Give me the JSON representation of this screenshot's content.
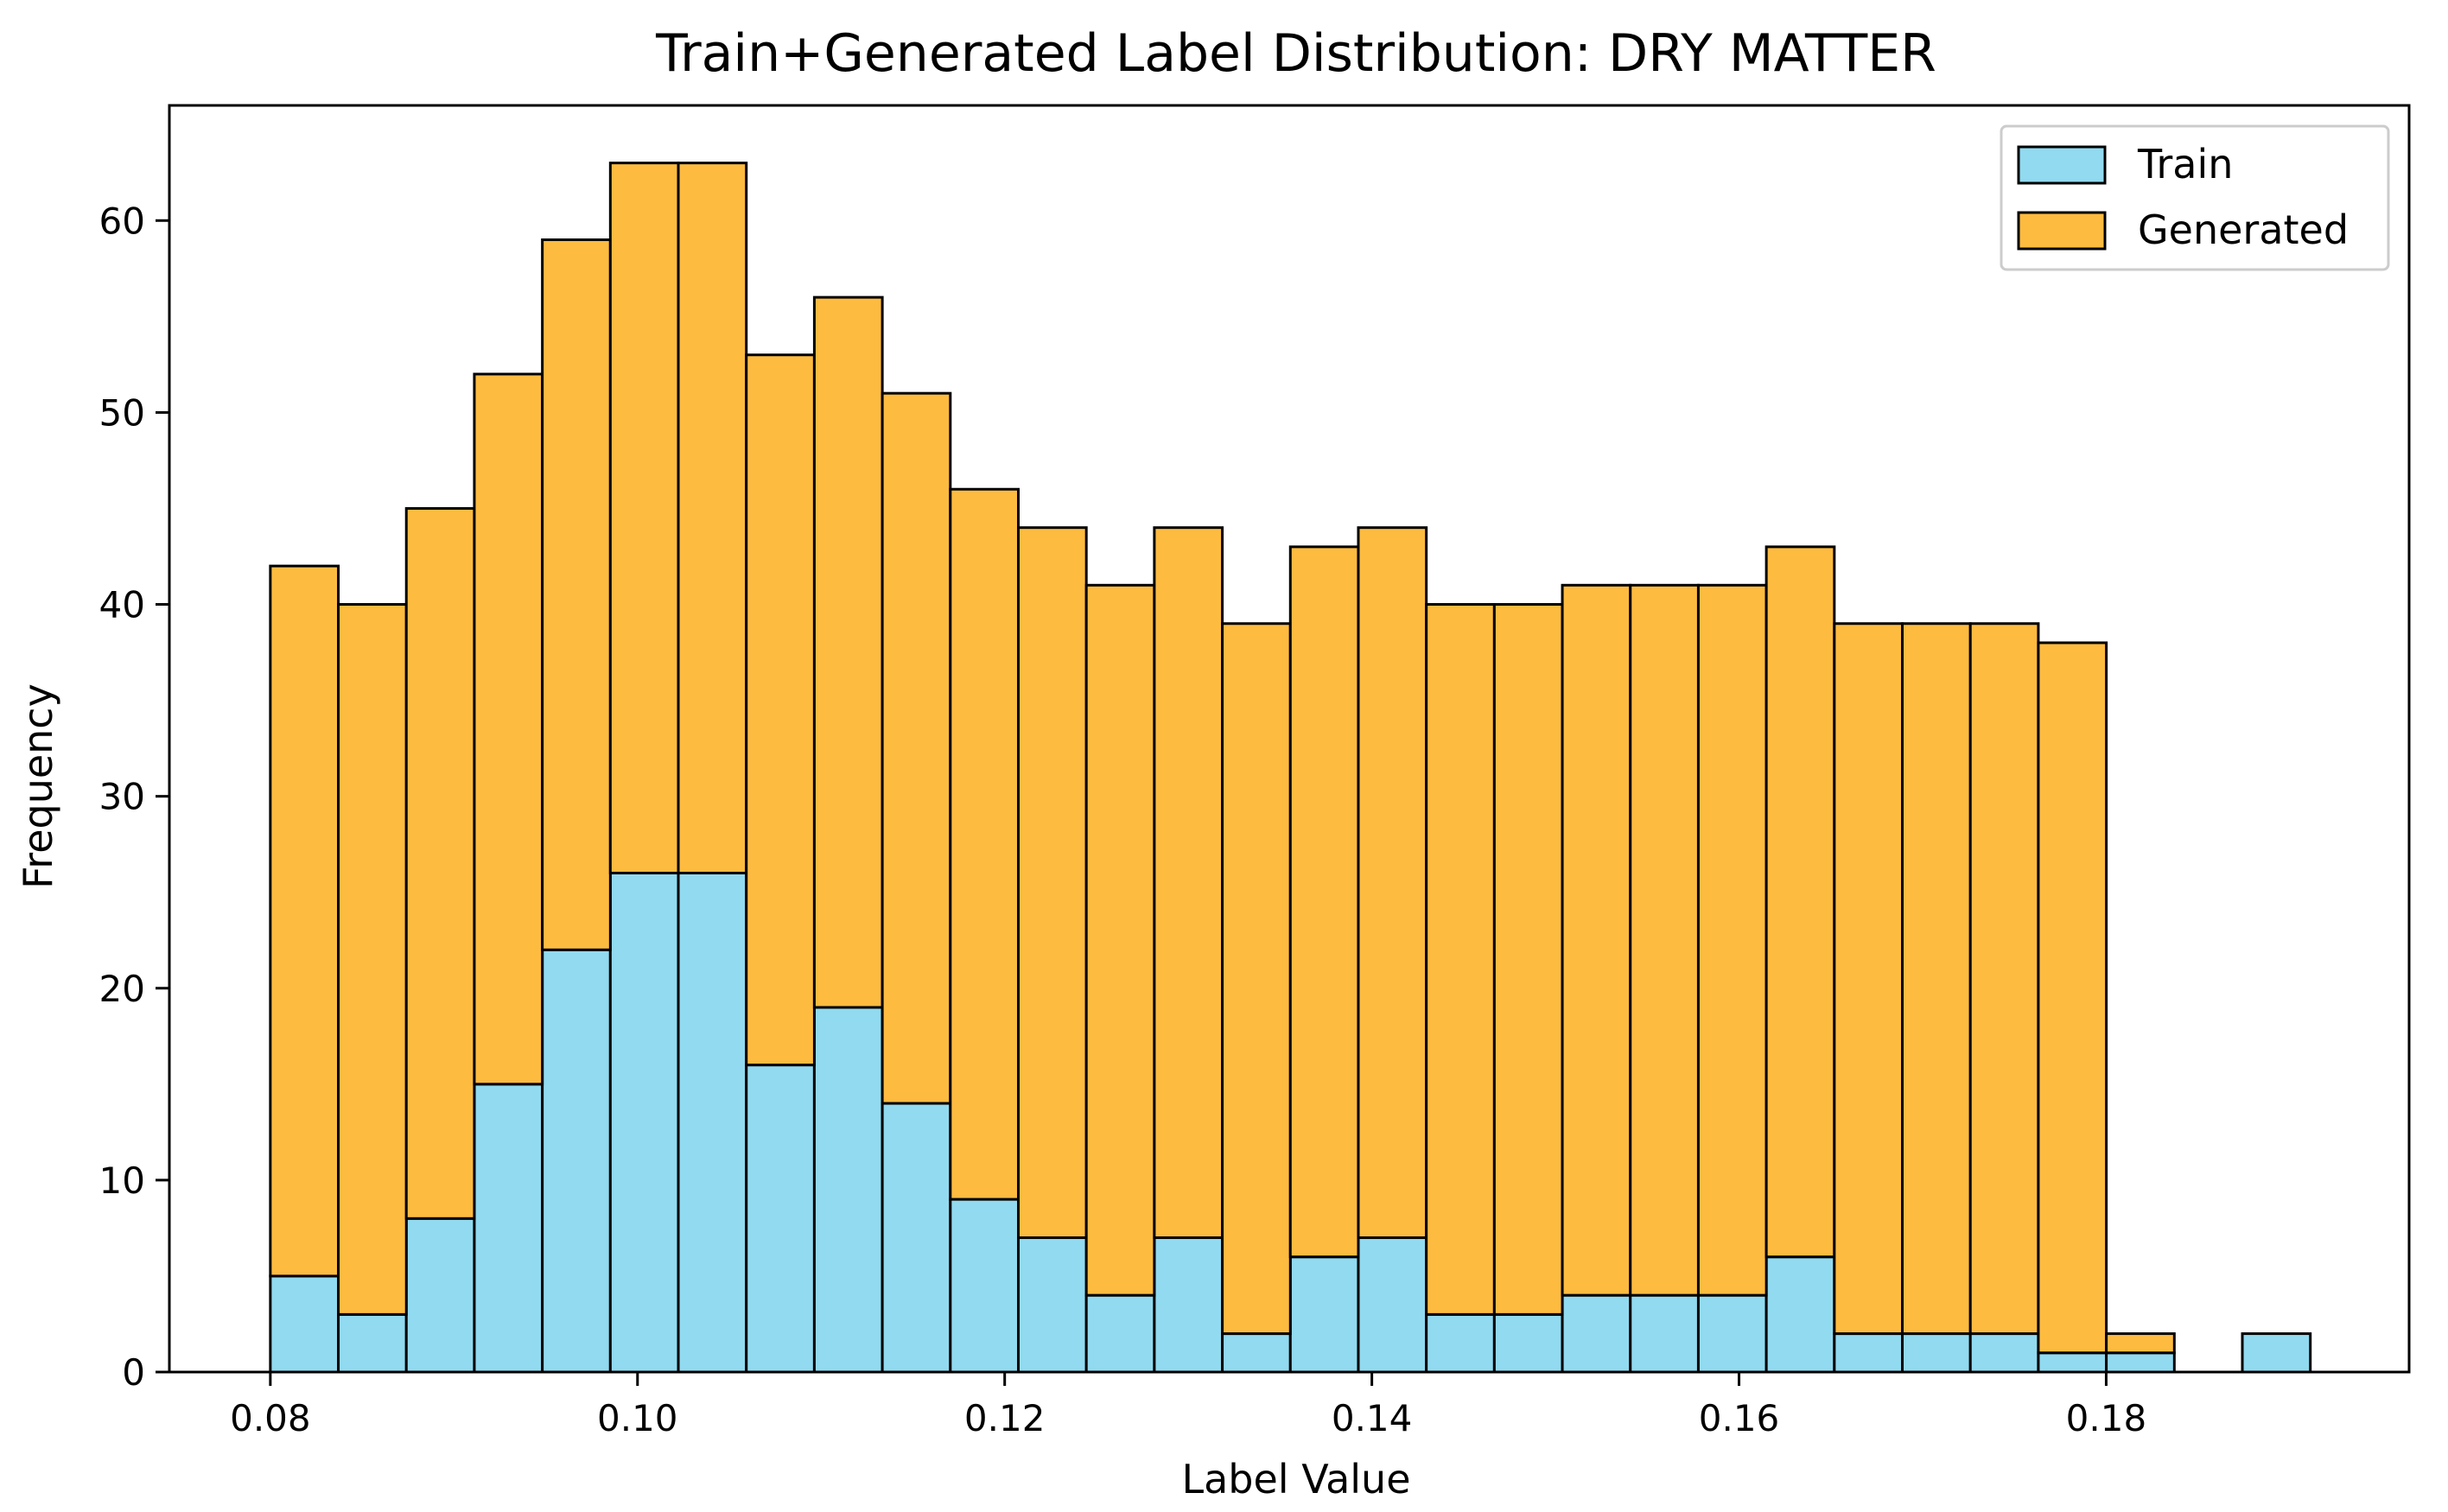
{
  "chart_data": {
    "type": "bar",
    "stacked": true,
    "title": "Train+Generated Label Distribution: DRY MATTER",
    "xlabel": "Label Value",
    "ylabel": "Frequency",
    "bin_start": 0.08,
    "bin_width": 0.003704,
    "bin_count": 30,
    "xlim": [
      0.0745,
      0.1965
    ],
    "ylim": [
      0,
      66
    ],
    "xticks": [
      0.08,
      0.1,
      0.12,
      0.14,
      0.16,
      0.18
    ],
    "xtick_labels": [
      "0.08",
      "0.10",
      "0.12",
      "0.14",
      "0.16",
      "0.18"
    ],
    "yticks": [
      0,
      10,
      20,
      30,
      40,
      50,
      60
    ],
    "ytick_labels": [
      "0",
      "10",
      "20",
      "30",
      "40",
      "50",
      "60"
    ],
    "legend_position": "top-right",
    "series": [
      {
        "name": "Train",
        "color": "#91DAF0",
        "values": [
          5,
          3,
          8,
          15,
          22,
          26,
          26,
          16,
          19,
          14,
          9,
          7,
          4,
          7,
          2,
          6,
          7,
          3,
          3,
          4,
          4,
          4,
          6,
          2,
          2,
          2,
          1,
          1,
          0,
          2
        ]
      },
      {
        "name": "Generated",
        "color": "#FDBB40",
        "values": [
          37,
          37,
          37,
          37,
          37,
          37,
          37,
          37,
          37,
          37,
          37,
          37,
          37,
          37,
          37,
          37,
          37,
          37,
          37,
          37,
          37,
          37,
          37,
          37,
          37,
          37,
          37,
          1,
          0,
          0
        ]
      }
    ],
    "edge_color": "#000000",
    "axes_color": "#000000"
  }
}
